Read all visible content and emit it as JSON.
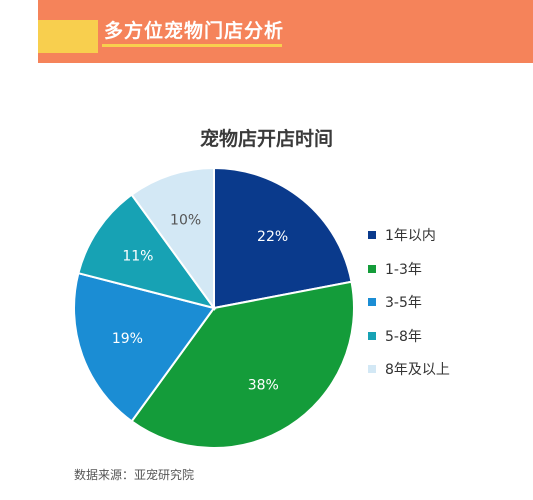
{
  "header": {
    "title": "多方位宠物门店分析"
  },
  "chart_data": {
    "type": "pie",
    "title": "宠物店开店时间",
    "categories": [
      "1年以内",
      "1-3年",
      "3-5年",
      "5-8年",
      "8年及以上"
    ],
    "values": [
      22,
      38,
      19,
      11,
      10
    ],
    "value_labels": [
      "22%",
      "38%",
      "19%",
      "11%",
      "10%"
    ],
    "colors": [
      "#0a3a8c",
      "#149c3a",
      "#1b8dd4",
      "#17a2b4",
      "#d3e8f5"
    ],
    "label_colors": [
      "#ffffff",
      "#ffffff",
      "#ffffff",
      "#ffffff",
      "#555555"
    ],
    "legend_position": "right"
  },
  "source": "数据来源：亚宠研究院"
}
